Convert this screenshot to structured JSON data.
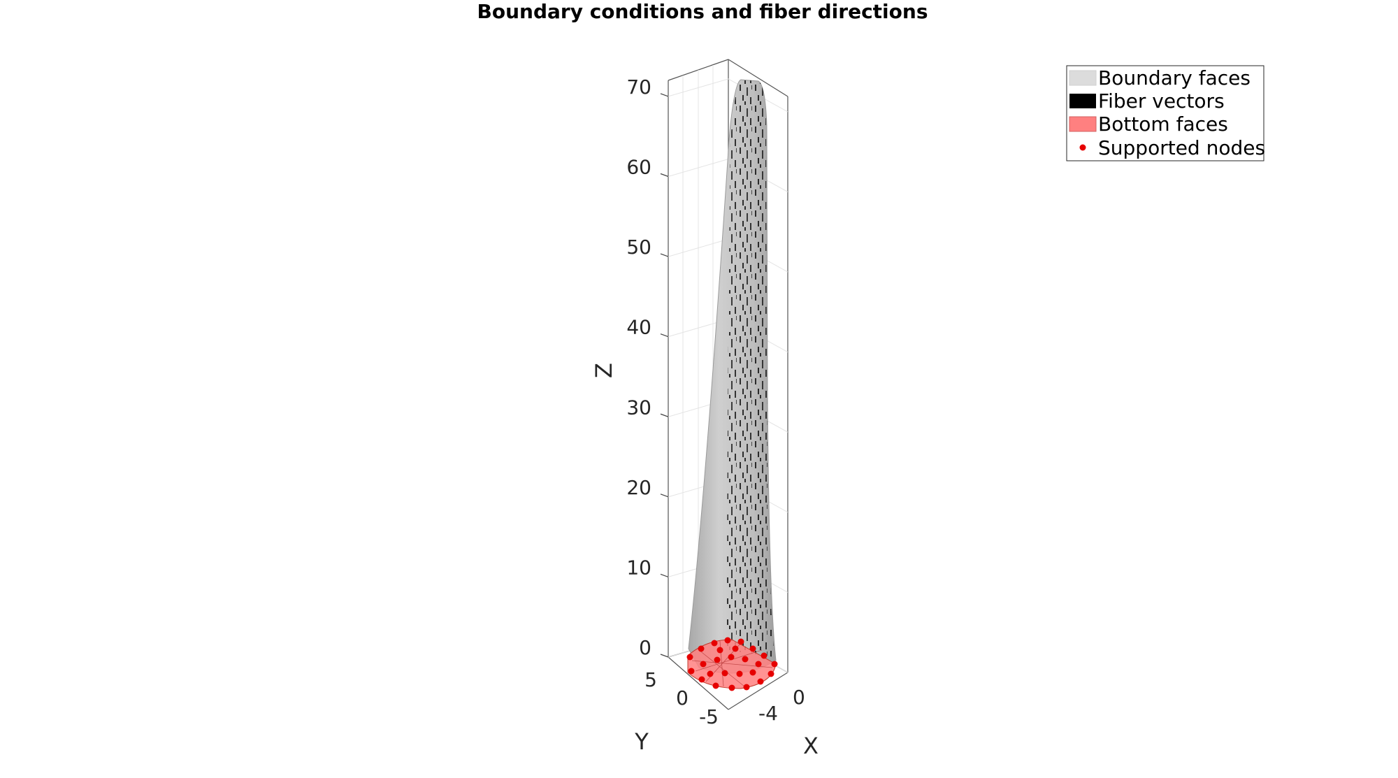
{
  "chart_data": {
    "type": "3d-surface",
    "title": "Boundary conditions and fiber directions",
    "xlabel": "X",
    "ylabel": "Y",
    "zlabel": "Z",
    "x_ticks": [
      "-4",
      "0"
    ],
    "y_ticks": [
      "5",
      "0",
      "-5"
    ],
    "z_ticks": [
      "0",
      "10",
      "20",
      "30",
      "40",
      "50",
      "60",
      "70"
    ],
    "z_ticks_values": [
      0,
      10,
      20,
      30,
      40,
      50,
      60,
      70
    ],
    "zlim": [
      0,
      72
    ],
    "grid": true,
    "legend_position": "top-right",
    "series": [
      {
        "name": "Boundary faces",
        "marker": "patch",
        "color": "#dcdcdc"
      },
      {
        "name": "Fiber vectors",
        "marker": "patch",
        "color": "#000000"
      },
      {
        "name": "Bottom faces",
        "marker": "patch",
        "color": "#ff8080"
      },
      {
        "name": "Supported nodes",
        "marker": "dot",
        "color": "#e60000"
      }
    ]
  }
}
